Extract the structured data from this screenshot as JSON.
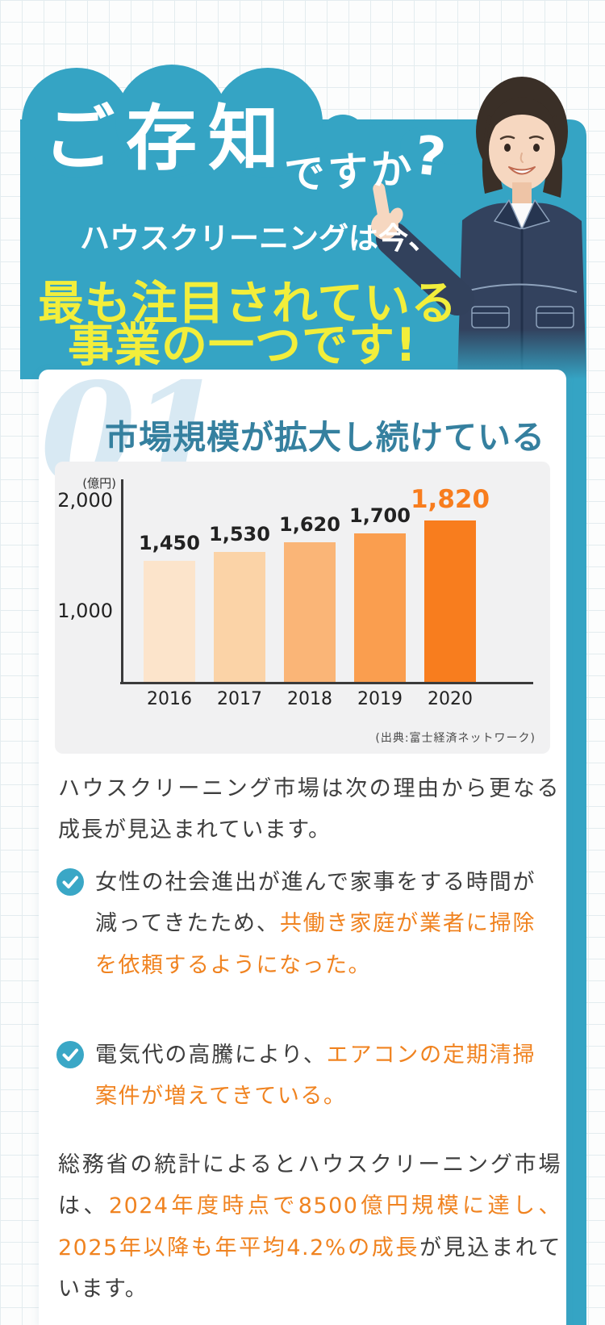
{
  "hero": {
    "title_main": "ご存知",
    "title_suffix": "ですか",
    "title_question": "?",
    "subtitle": "ハウスクリーニングは今、",
    "highlight_line1": "最も注目されている",
    "highlight_line2": "事業の一つです!",
    "illustration": "female-cleaning-staff-pointing-up"
  },
  "colors": {
    "teal": "#35a4c4",
    "yellow": "#f2ee3b",
    "heading_teal": "#35809f",
    "accent_orange": "#f08320"
  },
  "section": {
    "number": "01",
    "heading": "市場規模が拡大し続けている"
  },
  "chart_data": {
    "type": "bar",
    "title": "",
    "unit_label": "(億円)",
    "categories": [
      "2016",
      "2017",
      "2018",
      "2019",
      "2020"
    ],
    "values": [
      1450,
      1530,
      1620,
      1700,
      1820
    ],
    "value_labels": [
      "1,450",
      "1,530",
      "1,620",
      "1,700",
      "1,820"
    ],
    "y_ticks": [
      {
        "label": "2,000",
        "value": 2000
      },
      {
        "label": "1,000",
        "value": 1000
      }
    ],
    "ylim": [
      350,
      2150
    ],
    "bar_colors": [
      "#fce4cb",
      "#fbd3a7",
      "#fab577",
      "#fa9e4f",
      "#f87d1e"
    ],
    "highlight_index": 4,
    "highlight_color": "#f87d1e",
    "source": "(出典:富士経済ネットワーク)",
    "grid": false,
    "legend": false
  },
  "body": {
    "paragraph1": "ハウスクリーニング市場は次の理由から更なる成長が見込まれています。",
    "bullets": [
      {
        "icon": "check-circle-icon",
        "segments": [
          {
            "text": "女性の社会進出が進んで家事をする時間が減ってきたため、",
            "accent": false
          },
          {
            "text": "共働き家庭が業者に掃除を依頼するようになった。",
            "accent": true
          }
        ]
      },
      {
        "icon": "check-circle-icon",
        "segments": [
          {
            "text": "電気代の高騰により、",
            "accent": false
          },
          {
            "text": "エアコンの定期清掃案件が増えてきている。",
            "accent": true
          }
        ]
      }
    ],
    "paragraph2_segments": [
      {
        "text": "総務省の統計によるとハウスクリーニング市場は、",
        "accent": false
      },
      {
        "text": "2024年度時点で8500億円規模に達し、2025年以降も年平均4.2%の成長",
        "accent": true
      },
      {
        "text": "が見込まれています。",
        "accent": false
      }
    ]
  }
}
